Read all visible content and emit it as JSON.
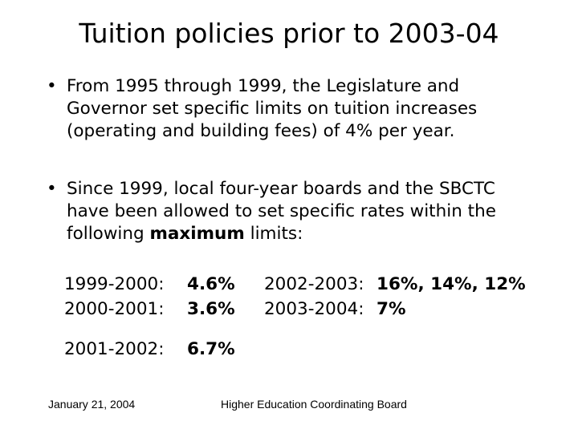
{
  "title": "Tuition policies prior to 2003-04",
  "bullets": [
    {
      "marker": "•",
      "text": "From 1995 through 1999, the Legislature and Governor set specific limits on tuition increases (operating and building fees) of 4% per year."
    },
    {
      "marker": "•",
      "text_before": "Since 1999, local four-year boards and the SBCTC have been allowed to set specific rates within the following ",
      "text_bold": "maximum",
      "text_after": " limits:"
    }
  ],
  "rates": [
    {
      "year": "1999-2000:",
      "value": "4.6%"
    },
    {
      "year": "2000-2001:",
      "value": "3.6%"
    },
    {
      "year": "2001-2002:",
      "value": "6.7%"
    },
    {
      "year": "2002-2003:",
      "value": "16%, 14%, 12%"
    },
    {
      "year": "2003-2004:",
      "value": "7%"
    }
  ],
  "footer": {
    "date": "January 21, 2004",
    "organization": "Higher Education Coordinating Board"
  }
}
